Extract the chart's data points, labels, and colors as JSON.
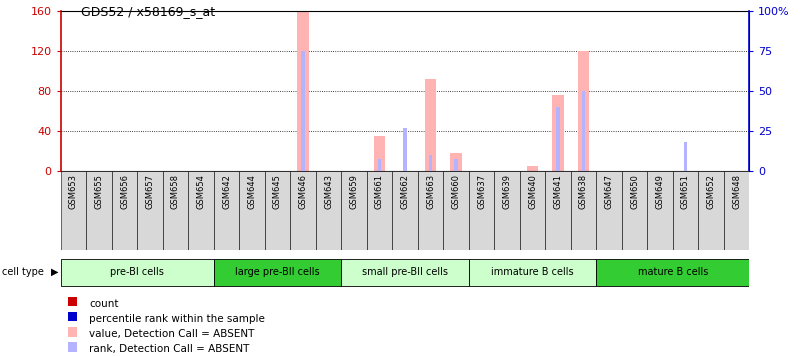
{
  "title": "GDS52 / x58169_s_at",
  "samples": [
    "GSM653",
    "GSM655",
    "GSM656",
    "GSM657",
    "GSM658",
    "GSM654",
    "GSM642",
    "GSM644",
    "GSM645",
    "GSM646",
    "GSM643",
    "GSM659",
    "GSM661",
    "GSM662",
    "GSM663",
    "GSM660",
    "GSM637",
    "GSM639",
    "GSM640",
    "GSM641",
    "GSM638",
    "GSM647",
    "GSM650",
    "GSM649",
    "GSM651",
    "GSM652",
    "GSM648"
  ],
  "values": [
    0,
    0,
    0,
    0,
    0,
    0,
    0,
    0,
    0,
    159,
    0,
    0,
    35,
    0,
    92,
    18,
    0,
    0,
    5,
    76,
    120,
    0,
    0,
    0,
    0,
    0,
    0
  ],
  "ranks": [
    0,
    0,
    0,
    0,
    0,
    0,
    0,
    0,
    0,
    75,
    0,
    0,
    8,
    27,
    10,
    8,
    0,
    0,
    0,
    40,
    50,
    0,
    0,
    0,
    18,
    0,
    0
  ],
  "absent_value": [
    false,
    false,
    false,
    false,
    false,
    false,
    false,
    false,
    false,
    true,
    false,
    false,
    true,
    false,
    true,
    true,
    false,
    false,
    true,
    true,
    true,
    false,
    false,
    false,
    true,
    false,
    false
  ],
  "absent_rank": [
    false,
    false,
    false,
    false,
    false,
    false,
    false,
    false,
    false,
    true,
    false,
    false,
    true,
    true,
    true,
    true,
    false,
    false,
    false,
    true,
    true,
    false,
    false,
    false,
    true,
    false,
    false
  ],
  "cell_groups": [
    {
      "label": "pre-BI cells",
      "start": 0,
      "end": 6,
      "color": "#ccffcc"
    },
    {
      "label": "large pre-BII cells",
      "start": 6,
      "end": 11,
      "color": "#33cc33"
    },
    {
      "label": "small pre-BII cells",
      "start": 11,
      "end": 16,
      "color": "#ccffcc"
    },
    {
      "label": "immature B cells",
      "start": 16,
      "end": 21,
      "color": "#ccffcc"
    },
    {
      "label": "mature B cells",
      "start": 21,
      "end": 27,
      "color": "#33cc33"
    }
  ],
  "ylim_left": [
    0,
    160
  ],
  "ylim_right": [
    0,
    100
  ],
  "yticks_left": [
    0,
    40,
    80,
    120,
    160
  ],
  "yticks_right": [
    0,
    25,
    50,
    75,
    100
  ],
  "ytick_labels_left": [
    "0",
    "40",
    "80",
    "120",
    "160"
  ],
  "ytick_labels_right": [
    "0",
    "25",
    "50",
    "75",
    "100%"
  ],
  "bar_width": 0.45,
  "rank_bar_width": 0.15,
  "value_color_absent": "#ffb3b3",
  "value_color_present": "#cc0000",
  "rank_color_absent": "#b3b3ff",
  "rank_color_present": "#0000cc",
  "bg_color": "#ffffff",
  "plot_bg": "#ffffff",
  "legend_items": [
    {
      "label": "count",
      "color": "#cc0000"
    },
    {
      "label": "percentile rank within the sample",
      "color": "#0000cc"
    },
    {
      "label": "value, Detection Call = ABSENT",
      "color": "#ffb3b3"
    },
    {
      "label": "rank, Detection Call = ABSENT",
      "color": "#b3b3ff"
    }
  ],
  "left_axis_color": "#cc0000",
  "right_axis_color": "#0000cc",
  "sample_box_color": "#d8d8d8"
}
